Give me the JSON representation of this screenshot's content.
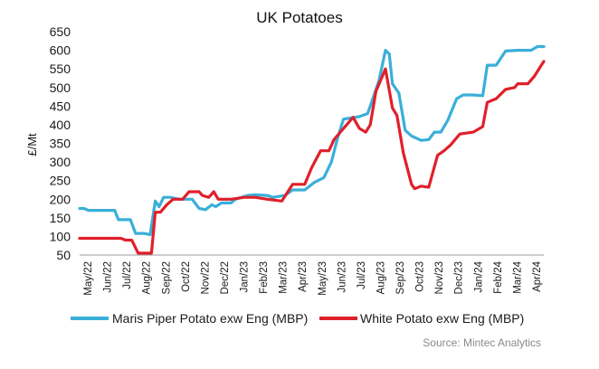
{
  "chart_data": {
    "type": "line",
    "title": "UK Potatoes",
    "ylabel": "£/Mt",
    "xlabel": "",
    "ylim": [
      50,
      650
    ],
    "yticks": [
      50,
      100,
      150,
      200,
      250,
      300,
      350,
      400,
      450,
      500,
      550,
      600,
      650
    ],
    "xlim": [
      "2022-05-01",
      "2024-04-30"
    ],
    "xticks": [
      "May/22",
      "Jun/22",
      "Jul/22",
      "Aug/22",
      "Sep/22",
      "Oct/22",
      "Nov/22",
      "Dec/22",
      "Jan/23",
      "Feb/23",
      "Mar/23",
      "Apr/23",
      "May/23",
      "Jun/23",
      "Jul/23",
      "Aug/23",
      "Sep/23",
      "Oct/23",
      "Nov/23",
      "Dec/23",
      "Jan/24",
      "Feb/24",
      "Mar/24",
      "Apr/24"
    ],
    "grid": false,
    "legend": "bottom",
    "source": "Source: Mintec Analytics",
    "series": [
      {
        "name": "Maris Piper Potato exw Eng (MBP)",
        "color": "#3aafd9",
        "points": [
          [
            "2022-05-01",
            175
          ],
          [
            "2022-05-08",
            175
          ],
          [
            "2022-05-15",
            170
          ],
          [
            "2022-06-01",
            170
          ],
          [
            "2022-06-25",
            170
          ],
          [
            "2022-07-01",
            145
          ],
          [
            "2022-07-20",
            145
          ],
          [
            "2022-07-28",
            108
          ],
          [
            "2022-08-10",
            108
          ],
          [
            "2022-08-20",
            105
          ],
          [
            "2022-08-28",
            195
          ],
          [
            "2022-09-03",
            180
          ],
          [
            "2022-09-10",
            205
          ],
          [
            "2022-09-20",
            205
          ],
          [
            "2022-10-05",
            200
          ],
          [
            "2022-10-25",
            200
          ],
          [
            "2022-11-05",
            175
          ],
          [
            "2022-11-15",
            172
          ],
          [
            "2022-11-25",
            185
          ],
          [
            "2022-12-01",
            180
          ],
          [
            "2022-12-10",
            190
          ],
          [
            "2022-12-25",
            190
          ],
          [
            "2023-01-01",
            200
          ],
          [
            "2023-01-20",
            210
          ],
          [
            "2023-02-01",
            212
          ],
          [
            "2023-02-20",
            210
          ],
          [
            "2023-03-01",
            205
          ],
          [
            "2023-03-20",
            210
          ],
          [
            "2023-04-01",
            225
          ],
          [
            "2023-04-20",
            225
          ],
          [
            "2023-05-05",
            245
          ],
          [
            "2023-05-20",
            258
          ],
          [
            "2023-06-01",
            300
          ],
          [
            "2023-06-10",
            360
          ],
          [
            "2023-06-20",
            415
          ],
          [
            "2023-07-01",
            418
          ],
          [
            "2023-07-15",
            422
          ],
          [
            "2023-07-28",
            430
          ],
          [
            "2023-08-05",
            470
          ],
          [
            "2023-08-15",
            520
          ],
          [
            "2023-08-25",
            600
          ],
          [
            "2023-08-31",
            590
          ],
          [
            "2023-09-05",
            510
          ],
          [
            "2023-09-15",
            485
          ],
          [
            "2023-09-25",
            385
          ],
          [
            "2023-10-05",
            370
          ],
          [
            "2023-10-20",
            358
          ],
          [
            "2023-11-01",
            360
          ],
          [
            "2023-11-10",
            380
          ],
          [
            "2023-11-20",
            380
          ],
          [
            "2023-12-01",
            412
          ],
          [
            "2023-12-15",
            470
          ],
          [
            "2023-12-25",
            480
          ],
          [
            "2024-01-10",
            480
          ],
          [
            "2024-01-25",
            478
          ],
          [
            "2024-02-01",
            560
          ],
          [
            "2024-02-15",
            560
          ],
          [
            "2024-03-01",
            598
          ],
          [
            "2024-03-20",
            600
          ],
          [
            "2024-04-10",
            600
          ],
          [
            "2024-04-20",
            610
          ],
          [
            "2024-04-30",
            610
          ]
        ]
      },
      {
        "name": "White Potato exw Eng (MBP)",
        "color": "#e0202a",
        "points": [
          [
            "2022-05-01",
            95
          ],
          [
            "2022-06-01",
            95
          ],
          [
            "2022-07-05",
            95
          ],
          [
            "2022-07-12",
            90
          ],
          [
            "2022-07-22",
            90
          ],
          [
            "2022-08-01",
            55
          ],
          [
            "2022-08-22",
            55
          ],
          [
            "2022-08-28",
            165
          ],
          [
            "2022-09-05",
            165
          ],
          [
            "2022-09-15",
            185
          ],
          [
            "2022-09-25",
            200
          ],
          [
            "2022-10-10",
            200
          ],
          [
            "2022-10-20",
            220
          ],
          [
            "2022-11-05",
            220
          ],
          [
            "2022-11-10",
            210
          ],
          [
            "2022-11-20",
            205
          ],
          [
            "2022-11-28",
            220
          ],
          [
            "2022-12-05",
            200
          ],
          [
            "2022-12-25",
            200
          ],
          [
            "2023-01-15",
            205
          ],
          [
            "2023-02-01",
            205
          ],
          [
            "2023-02-20",
            200
          ],
          [
            "2023-03-15",
            195
          ],
          [
            "2023-04-01",
            240
          ],
          [
            "2023-04-20",
            240
          ],
          [
            "2023-05-01",
            285
          ],
          [
            "2023-05-15",
            330
          ],
          [
            "2023-05-28",
            330
          ],
          [
            "2023-06-05",
            360
          ],
          [
            "2023-06-15",
            380
          ],
          [
            "2023-06-25",
            400
          ],
          [
            "2023-07-05",
            420
          ],
          [
            "2023-07-15",
            390
          ],
          [
            "2023-07-25",
            380
          ],
          [
            "2023-08-01",
            400
          ],
          [
            "2023-08-10",
            490
          ],
          [
            "2023-08-25",
            550
          ],
          [
            "2023-09-05",
            445
          ],
          [
            "2023-09-12",
            425
          ],
          [
            "2023-09-22",
            325
          ],
          [
            "2023-10-05",
            240
          ],
          [
            "2023-10-10",
            228
          ],
          [
            "2023-10-20",
            235
          ],
          [
            "2023-11-01",
            232
          ],
          [
            "2023-11-15",
            318
          ],
          [
            "2023-11-25",
            330
          ],
          [
            "2023-12-05",
            345
          ],
          [
            "2023-12-20",
            375
          ],
          [
            "2024-01-10",
            380
          ],
          [
            "2024-01-25",
            395
          ],
          [
            "2024-02-01",
            460
          ],
          [
            "2024-02-15",
            470
          ],
          [
            "2024-03-01",
            495
          ],
          [
            "2024-03-15",
            500
          ],
          [
            "2024-03-20",
            510
          ],
          [
            "2024-04-05",
            510
          ],
          [
            "2024-04-15",
            530
          ],
          [
            "2024-04-30",
            570
          ]
        ]
      }
    ]
  }
}
